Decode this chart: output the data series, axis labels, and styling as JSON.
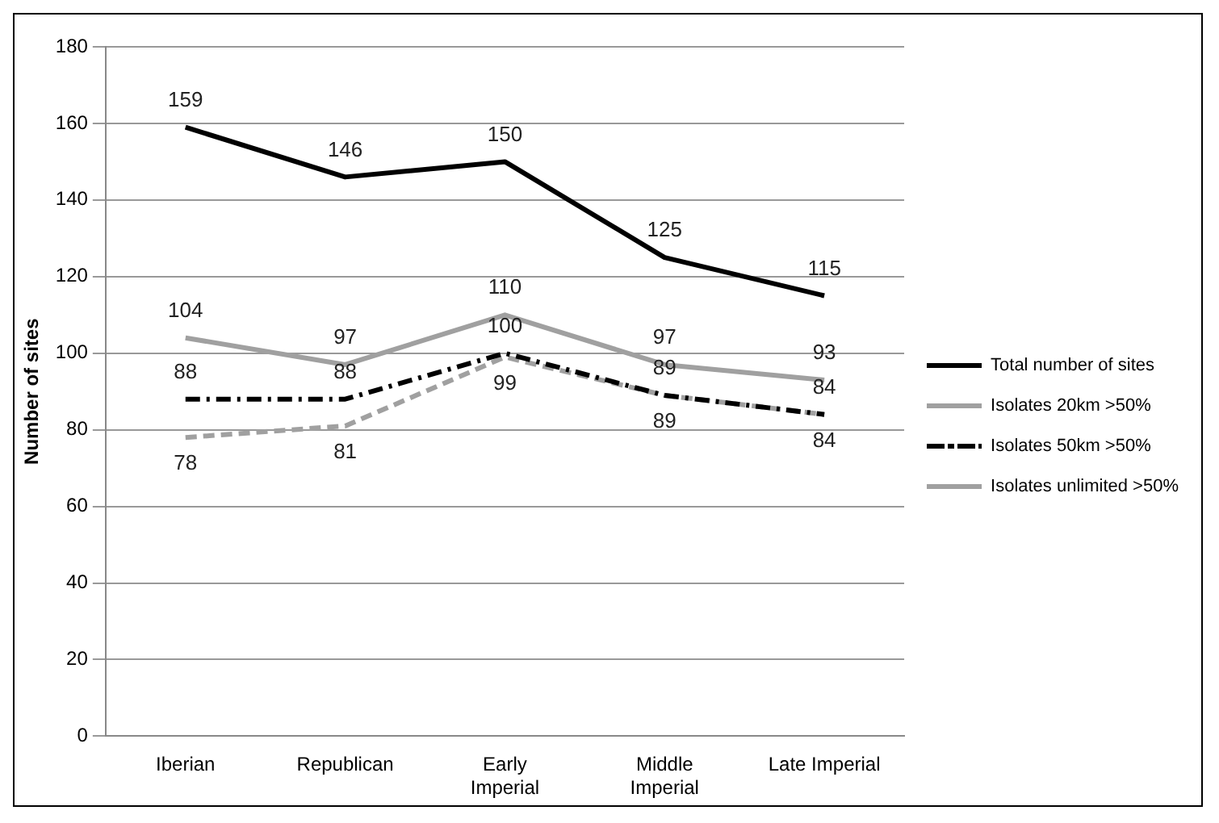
{
  "chart_data": {
    "type": "line",
    "ylabel": "Number of sites",
    "categories": [
      "Iberian",
      "Republican",
      "Early Imperial",
      "Middle Imperial",
      "Late Imperial"
    ],
    "series": [
      {
        "name": "Total number of sites",
        "color": "#000000",
        "line_style": "solid",
        "values": [
          159,
          146,
          150,
          125,
          115
        ]
      },
      {
        "name": "Isolates 20km >50%",
        "color": "#a0a0a0",
        "line_style": "solid",
        "values": [
          104,
          97,
          110,
          97,
          93
        ]
      },
      {
        "name": "Isolates 50km >50%",
        "color": "#000000",
        "line_style": "dashdot",
        "values": [
          88,
          88,
          100,
          89,
          84
        ]
      },
      {
        "name": "Isolates unlimited >50%",
        "color": "#a0a0a0",
        "line_style": "dashed",
        "values": [
          78,
          81,
          99,
          89,
          84
        ]
      }
    ],
    "ylim": [
      0,
      180
    ],
    "yticks": [
      0,
      20,
      40,
      60,
      80,
      100,
      120,
      140,
      160,
      180
    ],
    "grid": "y",
    "legend": "right",
    "marker": "none",
    "data_labels": true
  }
}
